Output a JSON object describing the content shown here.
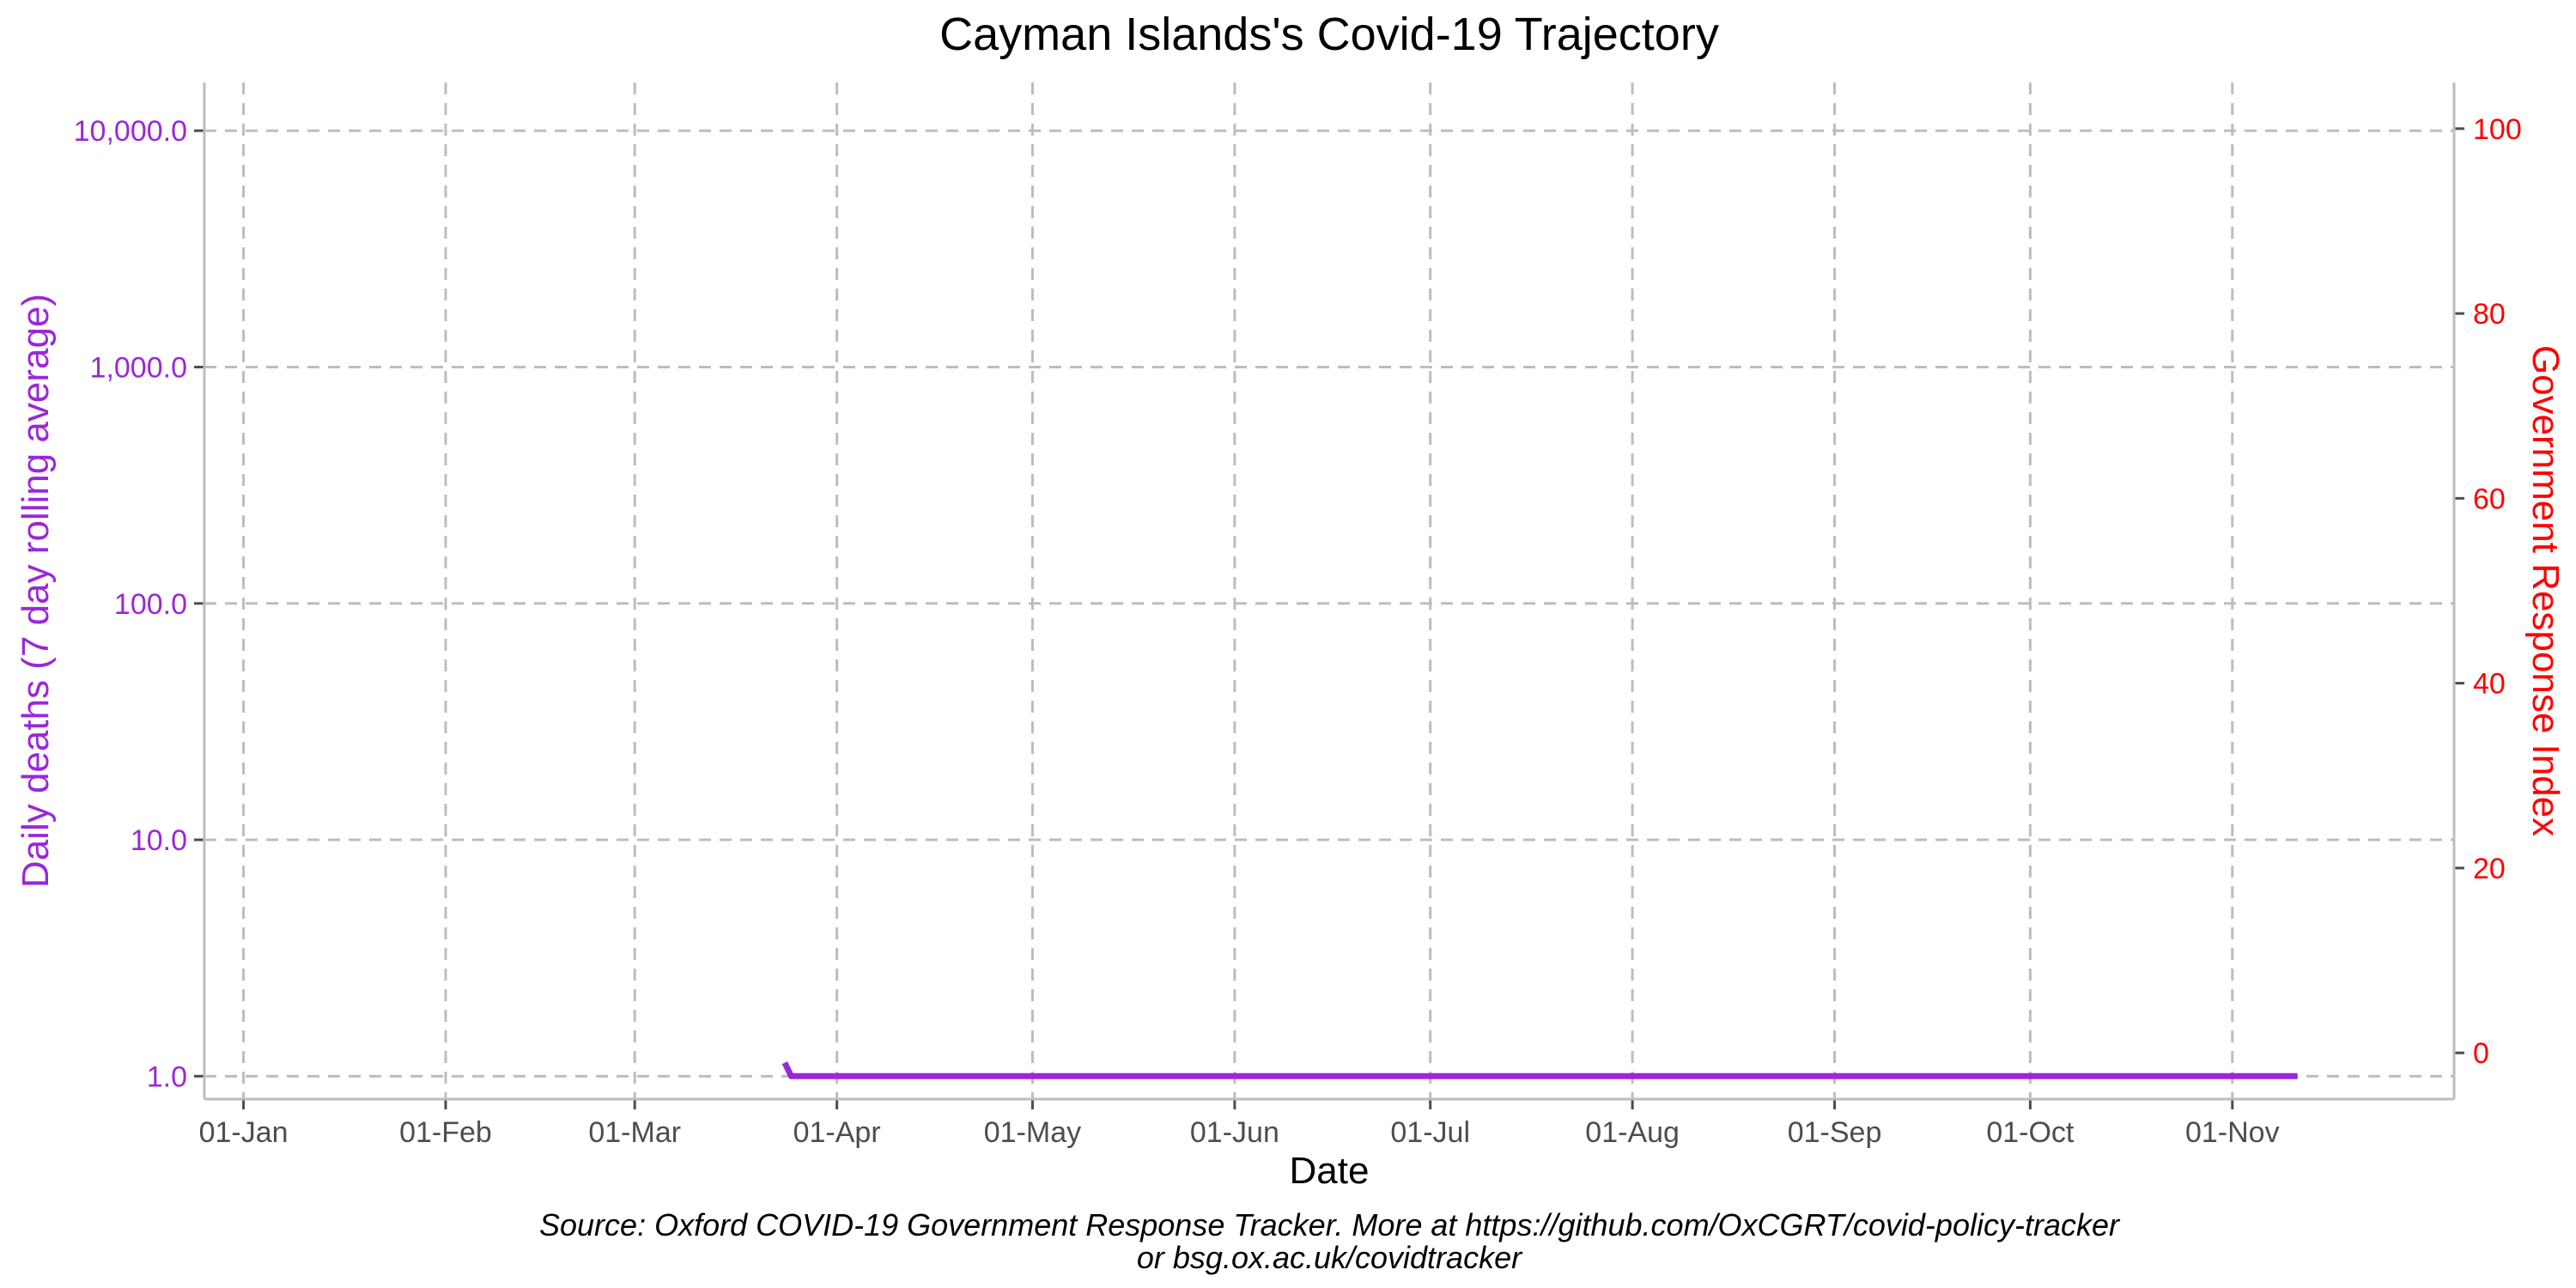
{
  "chart_data": {
    "type": "line",
    "title": "Cayman Islands's Covid-19 Trajectory",
    "xlabel": "Date",
    "ylabel": "Daily deaths (7 day rolling average)",
    "y2label": "Government Response Index",
    "caption_lines": [
      "Source: Oxford COVID-19 Government Response Tracker. More at https://github.com/OxCGRT/covid-policy-tracker",
      "or bsg.ox.ac.uk/covidtracker"
    ],
    "x_range": [
      "2019-12-26",
      "2020-12-05"
    ],
    "x_ticks": [
      {
        "date": "2020-01-01",
        "label": "01-Jan"
      },
      {
        "date": "2020-02-01",
        "label": "01-Feb"
      },
      {
        "date": "2020-03-01",
        "label": "01-Mar"
      },
      {
        "date": "2020-04-01",
        "label": "01-Apr"
      },
      {
        "date": "2020-05-01",
        "label": "01-May"
      },
      {
        "date": "2020-06-01",
        "label": "01-Jun"
      },
      {
        "date": "2020-07-01",
        "label": "01-Jul"
      },
      {
        "date": "2020-08-01",
        "label": "01-Aug"
      },
      {
        "date": "2020-09-01",
        "label": "01-Sep"
      },
      {
        "date": "2020-10-01",
        "label": "01-Oct"
      },
      {
        "date": "2020-11-01",
        "label": "01-Nov"
      }
    ],
    "y_scale": "log",
    "y_range": [
      0.8,
      16000
    ],
    "y_ticks": [
      {
        "value": 1,
        "label": "1.0"
      },
      {
        "value": 10,
        "label": "10.0"
      },
      {
        "value": 100,
        "label": "100.0"
      },
      {
        "value": 1000,
        "label": "1,000.0"
      },
      {
        "value": 10000,
        "label": "10,000.0"
      }
    ],
    "y2_range": [
      -5,
      105
    ],
    "y2_ticks": [
      {
        "value": 0,
        "label": "0"
      },
      {
        "value": 20,
        "label": "20"
      },
      {
        "value": 40,
        "label": "40"
      },
      {
        "value": 60,
        "label": "60"
      },
      {
        "value": 80,
        "label": "80"
      },
      {
        "value": 100,
        "label": "100"
      }
    ],
    "grid": true,
    "series": [
      {
        "color": "#9b27d8",
        "axis": "left",
        "points": [
          {
            "x": "2020-03-24",
            "y": 1.14
          },
          {
            "x": "2020-03-25",
            "y": 1.0
          },
          {
            "x": "2020-11-11",
            "y": 1.0
          }
        ]
      }
    ],
    "colors": {
      "left_axis": "#9b27d8",
      "right_axis": "#ff0000",
      "x_ticks": "#4d4d4d",
      "grid": "#bdbdbd",
      "axis_line": "#bdbdbd"
    }
  }
}
